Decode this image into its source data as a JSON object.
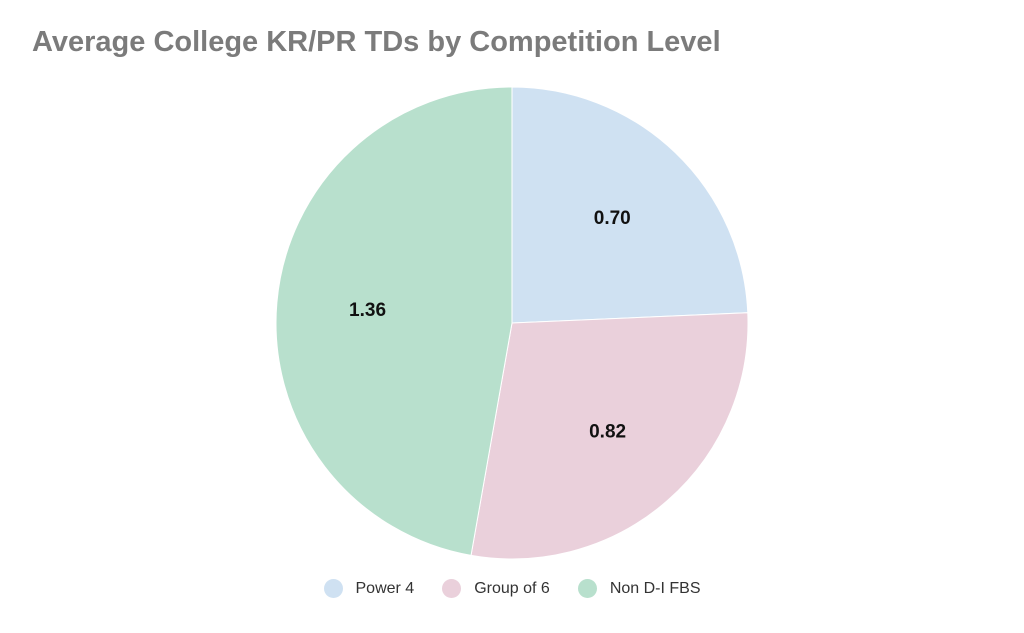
{
  "chart_data": {
    "type": "pie",
    "title": "Average College KR/PR TDs by Competition Level",
    "categories": [
      "Power 4",
      "Group of 6",
      "Non D-I FBS"
    ],
    "values": [
      0.7,
      0.82,
      1.36
    ],
    "value_labels": [
      "0.70",
      "0.82",
      "1.36"
    ],
    "colors": [
      "#cfe1f2",
      "#ead0db",
      "#b8e0cd"
    ],
    "legend_position": "bottom-center",
    "start": "12 o'clock",
    "direction": "clockwise"
  }
}
